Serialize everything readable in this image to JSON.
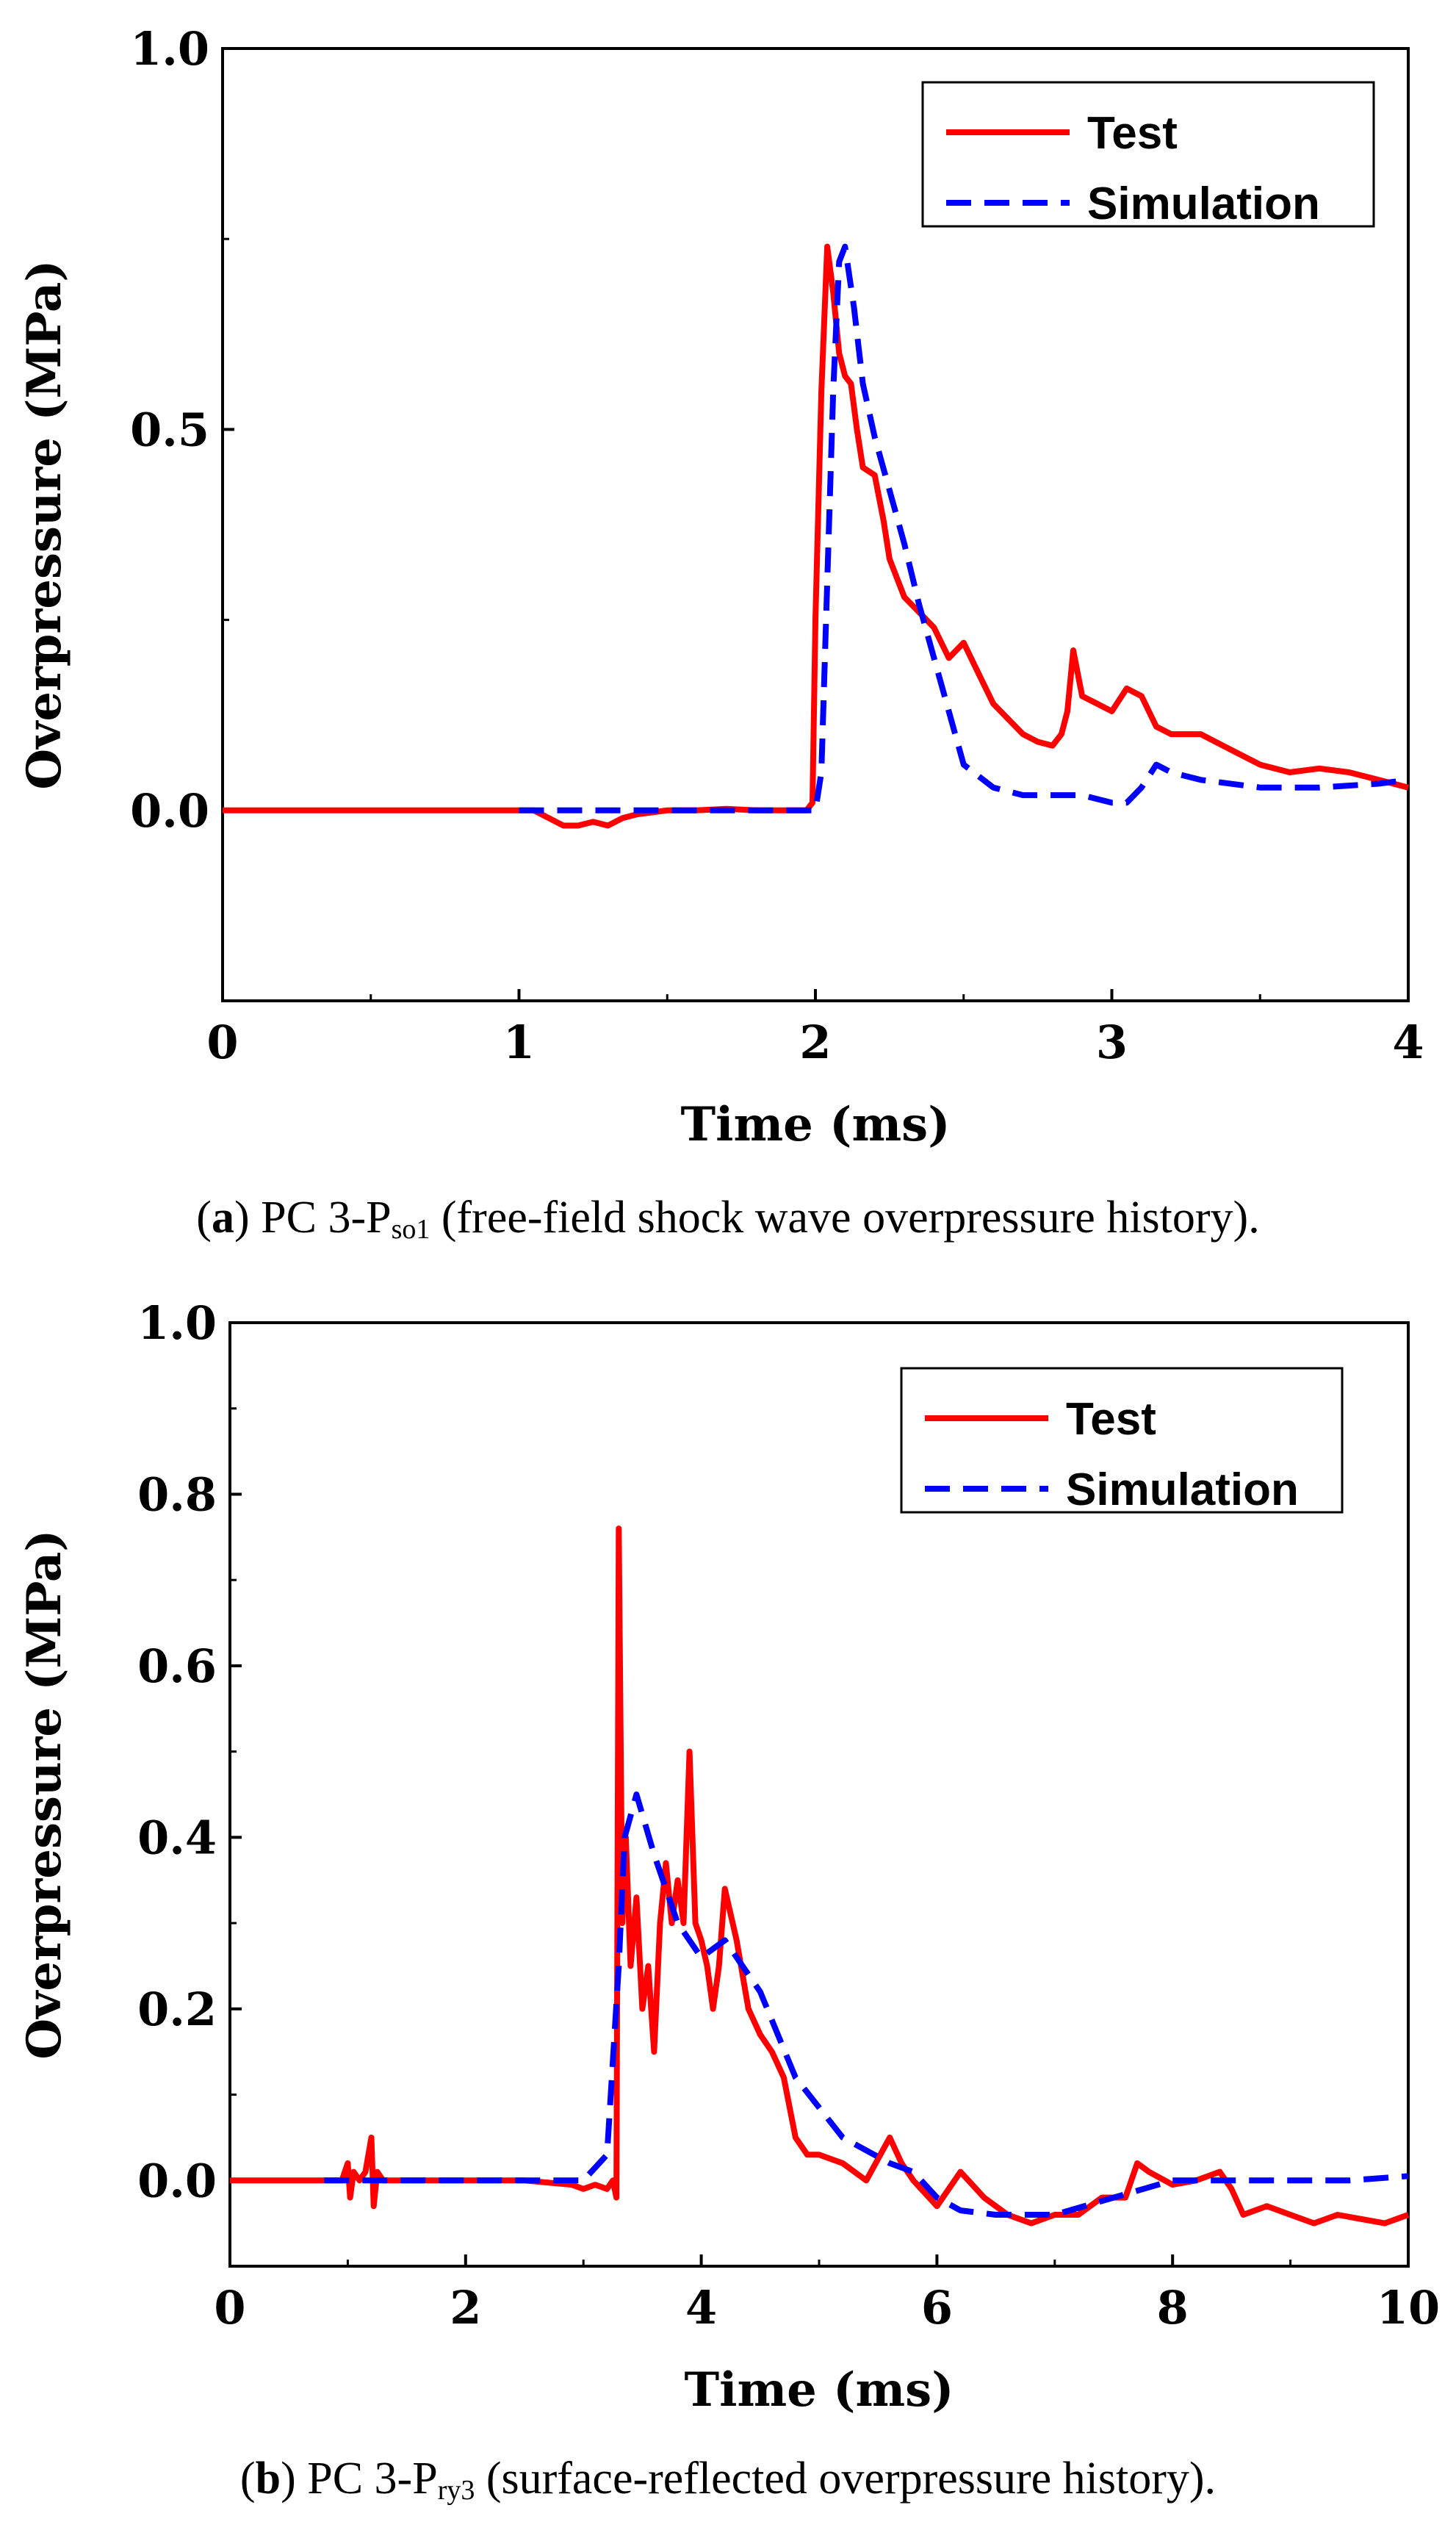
{
  "chart_data": [
    {
      "type": "line",
      "caption": {
        "letter": "a",
        "prefix": "PC 3-P",
        "subscript": "so1",
        "suffix": " (free-field shock wave overpressure history)."
      },
      "xlabel": "Time (ms)",
      "ylabel": "Overpressure (MPa)",
      "xlim": [
        0,
        4
      ],
      "ylim": [
        -0.25,
        1.0
      ],
      "xticks": [
        0,
        1,
        2,
        3,
        4
      ],
      "yticks": [
        0.0,
        0.5,
        1.0
      ],
      "ytick_labels": [
        "0.0",
        "0.5",
        "1.0"
      ],
      "legend_position": "top-right",
      "series": [
        {
          "name": "Test",
          "color": "#ff0000",
          "style": "solid",
          "x": [
            0,
            0.5,
            1.0,
            1.05,
            1.1,
            1.15,
            1.2,
            1.25,
            1.3,
            1.35,
            1.4,
            1.5,
            1.6,
            1.7,
            1.8,
            1.9,
            1.97,
            1.99,
            2.0,
            2.02,
            2.04,
            2.06,
            2.08,
            2.1,
            2.12,
            2.14,
            2.16,
            2.2,
            2.23,
            2.25,
            2.3,
            2.35,
            2.4,
            2.45,
            2.5,
            2.55,
            2.6,
            2.65,
            2.7,
            2.75,
            2.8,
            2.83,
            2.85,
            2.87,
            2.9,
            2.95,
            3.0,
            3.05,
            3.1,
            3.15,
            3.2,
            3.3,
            3.4,
            3.5,
            3.6,
            3.7,
            3.8,
            3.9,
            4.0
          ],
          "y": [
            0.0,
            0.0,
            0.0,
            0.0,
            -0.01,
            -0.02,
            -0.02,
            -0.015,
            -0.02,
            -0.01,
            -0.005,
            0.0,
            0.0,
            0.002,
            0.0,
            0.0,
            0.0,
            0.01,
            0.25,
            0.55,
            0.74,
            0.68,
            0.6,
            0.57,
            0.56,
            0.5,
            0.45,
            0.44,
            0.38,
            0.33,
            0.28,
            0.26,
            0.24,
            0.2,
            0.22,
            0.18,
            0.14,
            0.12,
            0.1,
            0.09,
            0.085,
            0.1,
            0.13,
            0.21,
            0.15,
            0.14,
            0.13,
            0.16,
            0.15,
            0.11,
            0.1,
            0.1,
            0.08,
            0.06,
            0.05,
            0.055,
            0.05,
            0.04,
            0.03
          ]
        },
        {
          "name": "Simulation",
          "color": "#0000ff",
          "style": "dashed",
          "x": [
            1.0,
            1.5,
            2.0,
            2.02,
            2.04,
            2.06,
            2.08,
            2.1,
            2.13,
            2.16,
            2.2,
            2.25,
            2.3,
            2.35,
            2.4,
            2.45,
            2.5,
            2.6,
            2.7,
            2.8,
            2.9,
            3.0,
            3.05,
            3.1,
            3.15,
            3.2,
            3.3,
            3.5,
            3.7,
            3.9,
            4.0
          ],
          "y": [
            0.0,
            0.0,
            0.0,
            0.05,
            0.3,
            0.55,
            0.72,
            0.74,
            0.66,
            0.56,
            0.49,
            0.42,
            0.35,
            0.27,
            0.2,
            0.13,
            0.06,
            0.03,
            0.02,
            0.02,
            0.02,
            0.01,
            0.01,
            0.03,
            0.06,
            0.05,
            0.04,
            0.03,
            0.03,
            0.035,
            0.04
          ]
        }
      ]
    },
    {
      "type": "line",
      "caption": {
        "letter": "b",
        "prefix": "PC 3-P",
        "subscript": "ry3",
        "suffix": " (surface-reflected overpressure history)."
      },
      "xlabel": "Time (ms)",
      "ylabel": "Overpressure (MPa)",
      "xlim": [
        0,
        10
      ],
      "ylim": [
        -0.1,
        1.0
      ],
      "xticks": [
        0,
        2,
        4,
        6,
        8,
        10
      ],
      "yticks": [
        0.0,
        0.2,
        0.4,
        0.6,
        0.8,
        1.0
      ],
      "ytick_labels": [
        "0.0",
        "0.2",
        "0.4",
        "0.6",
        "0.8",
        "1.0"
      ],
      "legend_position": "top-right",
      "series": [
        {
          "name": "Test",
          "color": "#ff0000",
          "style": "solid",
          "x": [
            0,
            0.5,
            0.95,
            1.0,
            1.02,
            1.05,
            1.1,
            1.15,
            1.2,
            1.22,
            1.25,
            1.3,
            1.5,
            2.0,
            2.5,
            2.9,
            3.0,
            3.1,
            3.2,
            3.25,
            3.28,
            3.3,
            3.33,
            3.36,
            3.4,
            3.45,
            3.5,
            3.55,
            3.6,
            3.65,
            3.7,
            3.75,
            3.8,
            3.85,
            3.9,
            3.95,
            4.0,
            4.05,
            4.1,
            4.15,
            4.2,
            4.3,
            4.4,
            4.5,
            4.6,
            4.7,
            4.8,
            4.9,
            5.0,
            5.2,
            5.4,
            5.6,
            5.7,
            5.8,
            6.0,
            6.2,
            6.4,
            6.6,
            6.8,
            7.0,
            7.2,
            7.4,
            7.6,
            7.7,
            7.8,
            8.0,
            8.2,
            8.4,
            8.5,
            8.6,
            8.8,
            9.0,
            9.2,
            9.4,
            9.6,
            9.8,
            10.0
          ],
          "y": [
            0.0,
            0.0,
            0.0,
            0.02,
            -0.02,
            0.01,
            0.0,
            0.01,
            0.05,
            -0.03,
            0.01,
            0.0,
            0.0,
            0.0,
            0.0,
            -0.005,
            -0.01,
            -0.005,
            -0.01,
            0.0,
            -0.02,
            0.76,
            0.3,
            0.4,
            0.25,
            0.33,
            0.2,
            0.25,
            0.15,
            0.3,
            0.37,
            0.3,
            0.35,
            0.3,
            0.5,
            0.3,
            0.28,
            0.25,
            0.2,
            0.25,
            0.34,
            0.28,
            0.2,
            0.17,
            0.15,
            0.12,
            0.05,
            0.03,
            0.03,
            0.02,
            0.0,
            0.05,
            0.02,
            0.0,
            -0.03,
            0.01,
            -0.02,
            -0.04,
            -0.05,
            -0.04,
            -0.04,
            -0.02,
            -0.02,
            0.02,
            0.01,
            -0.005,
            0.0,
            0.01,
            -0.01,
            -0.04,
            -0.03,
            -0.04,
            -0.05,
            -0.04,
            -0.045,
            -0.05,
            -0.04
          ]
        },
        {
          "name": "Simulation",
          "color": "#0000ff",
          "style": "dashed",
          "x": [
            0.8,
            2.0,
            3.0,
            3.2,
            3.3,
            3.35,
            3.45,
            3.6,
            3.8,
            4.0,
            4.2,
            4.5,
            4.8,
            5.2,
            5.6,
            5.8,
            6.0,
            6.2,
            6.5,
            7.0,
            7.5,
            8.0,
            8.5,
            9.0,
            9.5,
            10.0
          ],
          "y": [
            0.0,
            0.0,
            0.0,
            0.03,
            0.25,
            0.4,
            0.45,
            0.38,
            0.3,
            0.26,
            0.28,
            0.22,
            0.12,
            0.05,
            0.02,
            0.01,
            -0.02,
            -0.035,
            -0.04,
            -0.04,
            -0.02,
            0.0,
            0.0,
            0.0,
            0.0,
            0.005
          ]
        }
      ]
    }
  ]
}
